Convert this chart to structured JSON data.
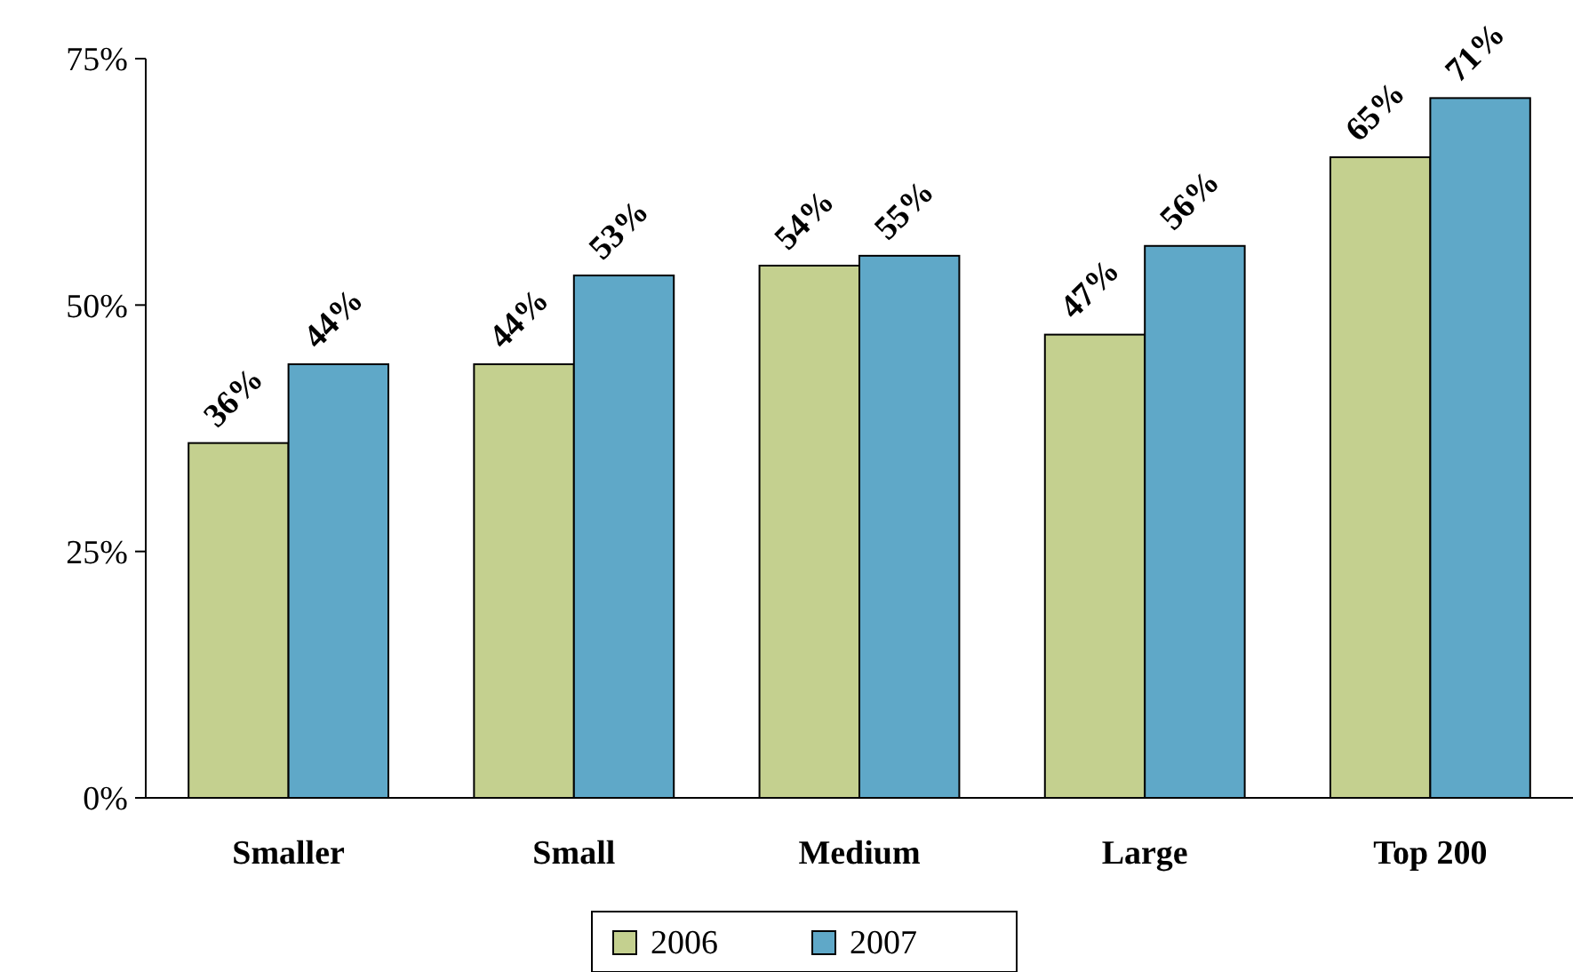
{
  "chart_data": {
    "type": "bar",
    "categories": [
      "Smaller",
      "Small",
      "Medium",
      "Large",
      "Top 200"
    ],
    "series": [
      {
        "name": "2006",
        "color": "#c4d08f",
        "values": [
          36,
          44,
          54,
          47,
          65
        ],
        "value_labels": [
          "36%",
          "44%",
          "54%",
          "47%",
          "65%"
        ]
      },
      {
        "name": "2007",
        "color": "#5fa8c8",
        "values": [
          44,
          53,
          55,
          56,
          71
        ],
        "value_labels": [
          "44%",
          "53%",
          "55%",
          "56%",
          "71%"
        ]
      }
    ],
    "ylim": [
      0,
      75
    ],
    "yticks": [
      {
        "value": 0,
        "label": "0%"
      },
      {
        "value": 25,
        "label": "25%"
      },
      {
        "value": 50,
        "label": "50%"
      },
      {
        "value": 75,
        "label": "75%"
      }
    ],
    "grid": false,
    "legend": "bottom"
  }
}
